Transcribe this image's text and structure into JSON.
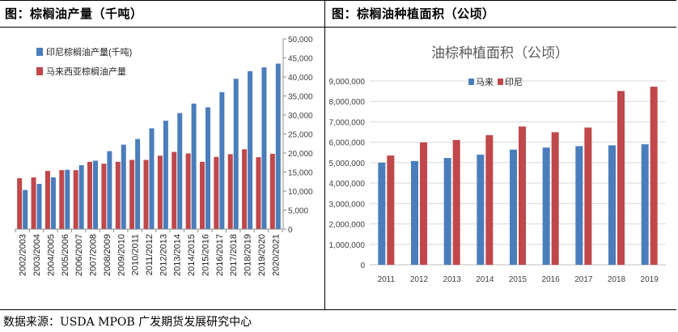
{
  "left_panel": {
    "title": "图：棕榈油产量（千吨）"
  },
  "right_panel": {
    "title": "图：棕榈油种植面积（公顷）"
  },
  "footer": {
    "source": "数据来源：USDA MPOB  广发期货发展研究中心"
  },
  "colors": {
    "blue": "#4a7dbc",
    "red": "#c0474a",
    "grid": "#d9d9d9",
    "axis_text": "#404040"
  },
  "chart_data": [
    {
      "type": "bar",
      "title": "",
      "xlabel": "",
      "ylabel": "",
      "categories": [
        "2002/2003",
        "2003/2004",
        "2004/2005",
        "2005/2006",
        "2006/2007",
        "2007/2008",
        "2008/2009",
        "2009/2010",
        "2010/2011",
        "2011/2012",
        "2012/2013",
        "2013/2014",
        "2014/2015",
        "2015/2016",
        "2016/2017",
        "2017/2018",
        "2018/2019",
        "2019/2020",
        "2020/2021"
      ],
      "series": [
        {
          "name": "印尼棕榈油产量(千吨)",
          "color": "#4a7dbc",
          "values": [
            10300,
            11900,
            13600,
            15600,
            16800,
            18000,
            20500,
            22200,
            23700,
            26500,
            28500,
            30500,
            33000,
            32000,
            36000,
            39500,
            41500,
            42500,
            43500
          ]
        },
        {
          "name": "马来西亚棕榈油产量",
          "color": "#c0474a",
          "values": [
            13400,
            13600,
            15300,
            15500,
            15500,
            17700,
            17200,
            17700,
            18200,
            18200,
            19300,
            20300,
            19900,
            17700,
            19000,
            19700,
            21000,
            18900,
            19800
          ]
        }
      ],
      "ylim": [
        0,
        50000
      ],
      "y_ticks": [
        "0",
        "5,000",
        "10,000",
        "15,000",
        "20,000",
        "25,000",
        "30,000",
        "35,000",
        "40,000",
        "45,000",
        "50,000"
      ],
      "y_axis_side": "right",
      "grid": false,
      "legend_position": "top-left"
    },
    {
      "type": "bar",
      "title": "油棕种植面积（公顷）",
      "xlabel": "",
      "ylabel": "",
      "categories": [
        "2011",
        "2012",
        "2013",
        "2014",
        "2015",
        "2016",
        "2017",
        "2018",
        "2019"
      ],
      "series": [
        {
          "name": "马来",
          "color": "#4a7dbc",
          "values": [
            5000000,
            5080000,
            5230000,
            5390000,
            5640000,
            5740000,
            5810000,
            5850000,
            5900000
          ]
        },
        {
          "name": "印尼",
          "color": "#c0474a",
          "values": [
            5350000,
            5990000,
            6110000,
            6350000,
            6770000,
            6490000,
            6720000,
            8510000,
            8720000
          ]
        }
      ],
      "ylim": [
        0,
        9000000
      ],
      "y_ticks": [
        "0",
        "1,000,000",
        "2,000,000",
        "3,000,000",
        "4,000,000",
        "5,000,000",
        "6,000,000",
        "7,000,000",
        "8,000,000",
        "9,000,000"
      ],
      "y_axis_side": "left",
      "grid": true,
      "legend_position": "top-left"
    }
  ]
}
